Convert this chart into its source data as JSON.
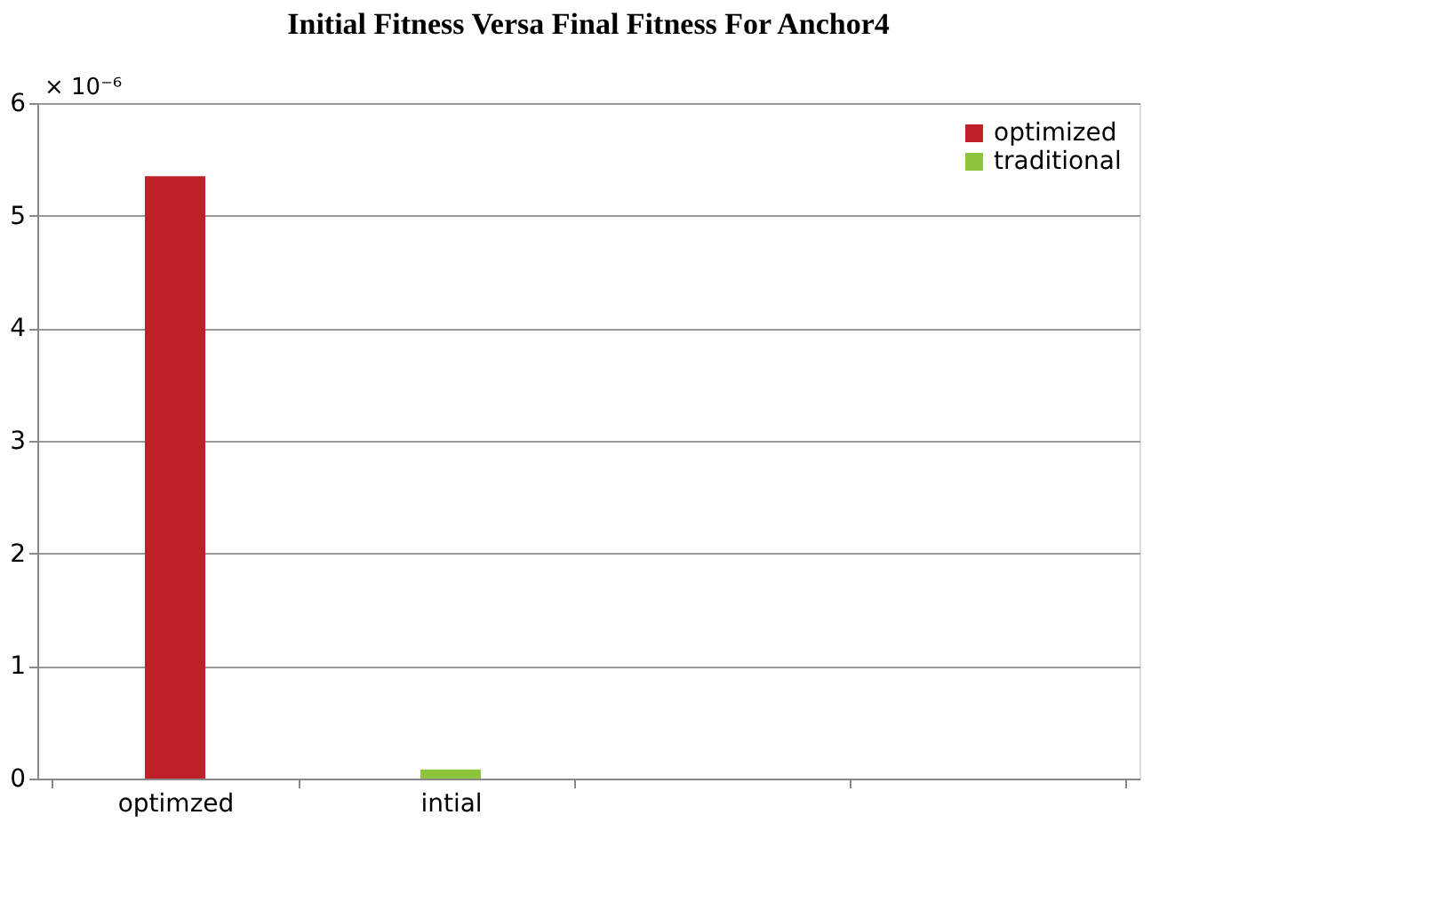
{
  "chart_data": {
    "type": "bar",
    "title": "Initial Fitness  Versa  Final Fitness  For Anchor4",
    "categories": [
      "optimzed",
      "intial",
      null,
      null
    ],
    "series": [
      {
        "name": "optimized",
        "color": "#c0202a",
        "values": [
          5.35,
          null,
          null,
          null
        ]
      },
      {
        "name": "traditional",
        "color": "#8cc43c",
        "values": [
          null,
          0.08,
          null,
          null
        ]
      }
    ],
    "ylim": [
      0,
      6
    ],
    "yticks": [
      0,
      1,
      2,
      3,
      4,
      5,
      6
    ],
    "annotations": [
      "× 10⁻⁶"
    ],
    "grid": "y",
    "legend": "top right"
  }
}
